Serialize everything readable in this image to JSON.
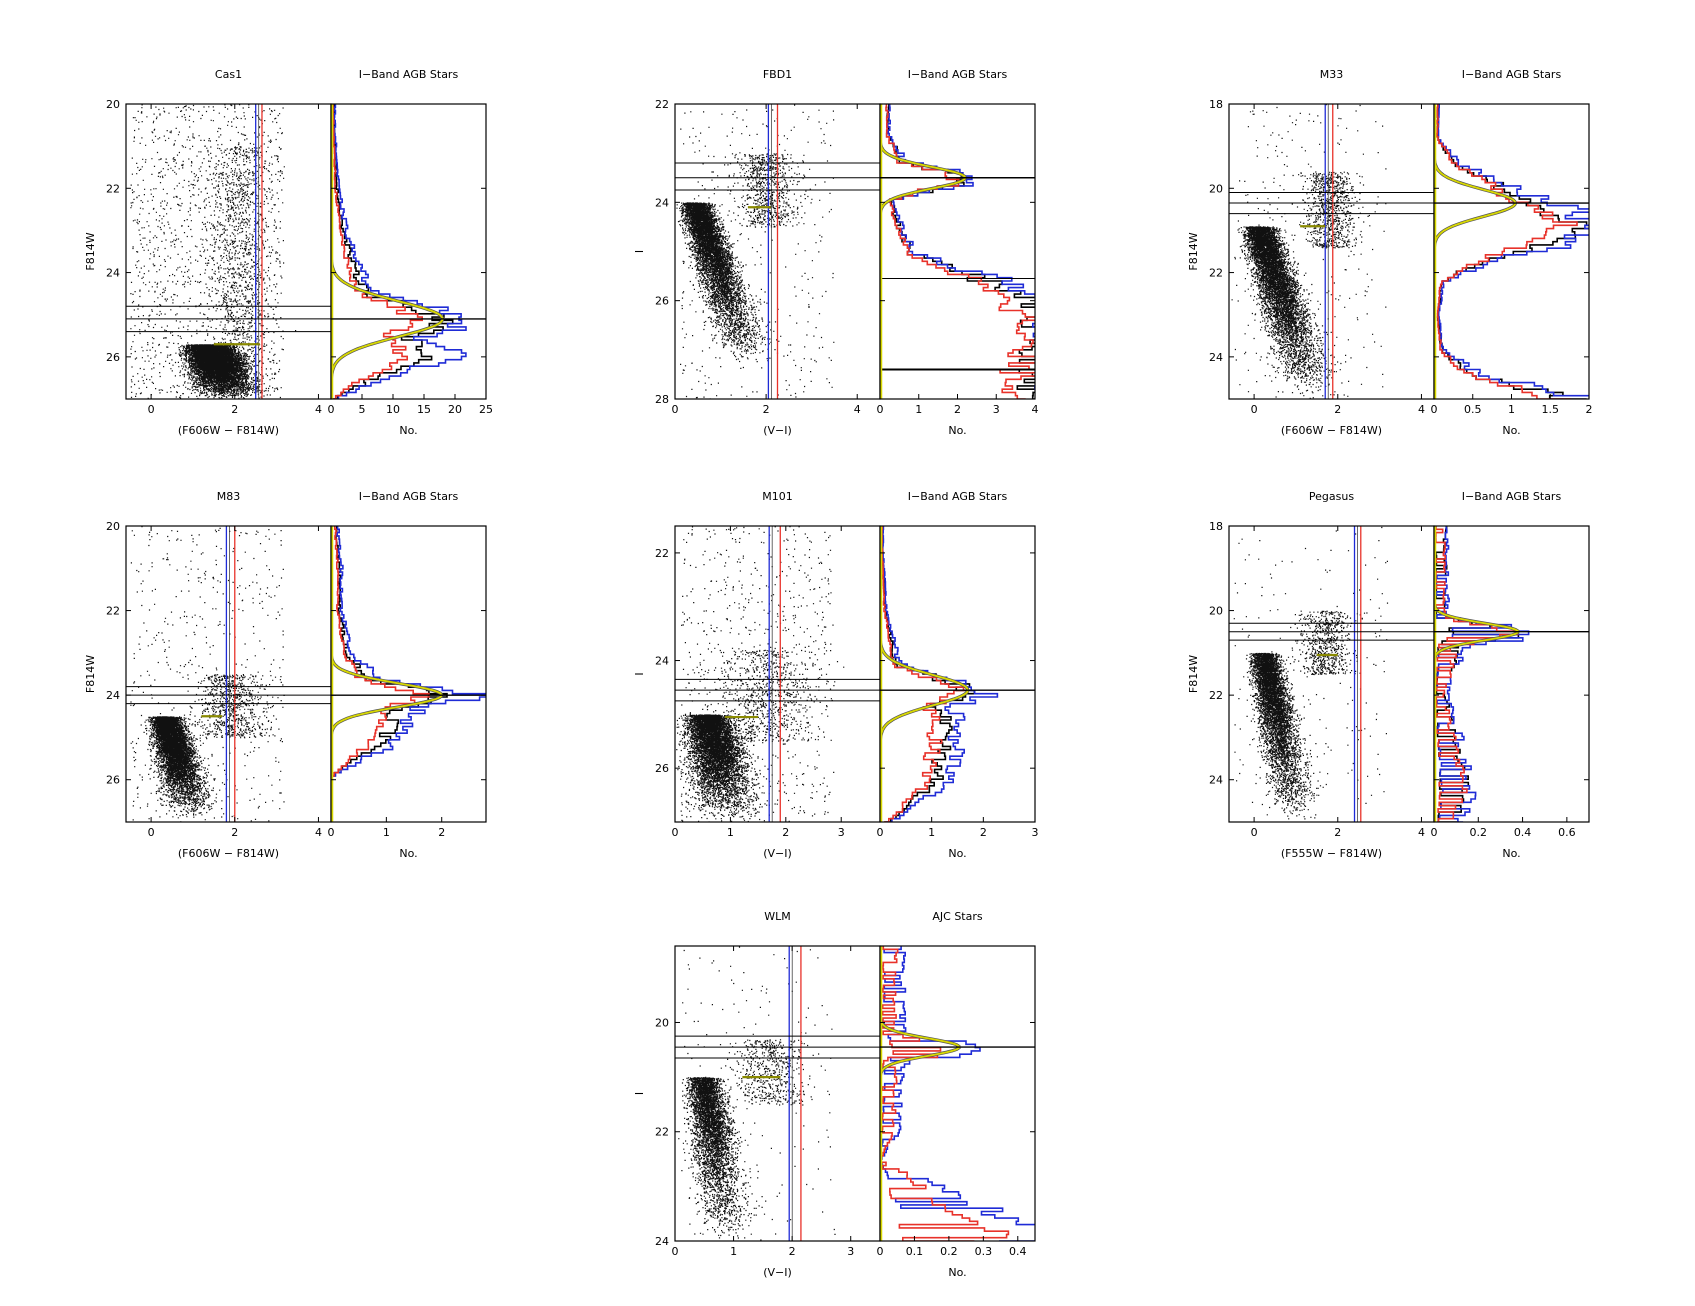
{
  "figure": {
    "colors": {
      "black": "#000000",
      "blue": "#1f2bd6",
      "red": "#e8322a",
      "yellow": "#d8d800",
      "yellow_dark": "#8a8a00",
      "points": "#111111"
    }
  },
  "chart_data": [
    {
      "type": "scatter",
      "title": "Cas1",
      "xlabel": "(F606W − F814W)",
      "ylabel": "F814W",
      "xlim": [
        -0.6,
        4.3
      ],
      "ylim": [
        27.0,
        20.0
      ],
      "xticks": [
        0,
        2,
        4
      ],
      "yticks": [
        20,
        22,
        24,
        26
      ],
      "cmd": {
        "rgb_x": 1.9,
        "rgb_top": 25.7,
        "rgb_bottom": 27.0,
        "rgb_slope": 1.2,
        "rgb_width": 0.45,
        "agb_x": 2.1,
        "agb_top": 21.0,
        "agb_width": 0.35,
        "density": 9000,
        "field": 1400
      },
      "blue_line": 2.5,
      "red_line": 2.65,
      "yellow_x": [
        1.5,
        2.6
      ],
      "yellow_y": 25.7,
      "hlines": [
        24.8,
        25.1,
        25.4
      ],
      "hist_line": 25.1,
      "hist": {
        "title": "I−Band AGB Stars",
        "xlabel": "No.",
        "xlim": [
          0,
          25
        ],
        "xticks": [
          0,
          5,
          10,
          15,
          20,
          25
        ],
        "peak": 25.1,
        "sigma": 0.42,
        "amp": 18,
        "tail": [
          [
            20.6,
            0.5
          ],
          [
            22,
            1
          ],
          [
            23,
            2
          ],
          [
            24,
            4
          ],
          [
            25.5,
            12
          ],
          [
            26,
            16
          ],
          [
            26.6,
            5
          ],
          [
            27,
            0
          ]
        ],
        "series": [
          {
            "name": "black",
            "scale": 1.0
          },
          {
            "name": "blue",
            "scale": 1.25
          },
          {
            "name": "red",
            "scale": 0.75
          }
        ]
      }
    },
    {
      "type": "scatter",
      "title": "FBD1",
      "xlabel": "(V−I)",
      "ylabel": "I",
      "xlim": [
        0,
        4.5
      ],
      "ylim": [
        28.0,
        22.0
      ],
      "xticks": [
        0,
        2,
        4
      ],
      "yticks": [
        22,
        24,
        26,
        28
      ],
      "cmd": {
        "rgb_x": 1.6,
        "rgb_top": 24.0,
        "rgb_bottom": 27.3,
        "rgb_slope": 1.0,
        "rgb_width": 0.3,
        "agb_x": 2.0,
        "agb_top": 23.0,
        "agb_width": 0.3,
        "density": 6500,
        "field": 350
      },
      "blue_line": 2.05,
      "red_line": 2.25,
      "yellow_x": [
        1.6,
        2.1
      ],
      "yellow_y": 24.1,
      "hlines": [
        23.2,
        23.5,
        23.75
      ],
      "hist_line": 23.5,
      "hist": {
        "title": "I−Band AGB Stars",
        "xlabel": "No.",
        "xlim": [
          0,
          4
        ],
        "xticks": [
          0,
          1,
          2,
          3,
          4
        ],
        "peak": 23.5,
        "sigma": 0.22,
        "amp": 2.2,
        "tail": [
          [
            22.6,
            0.2
          ],
          [
            23.0,
            0.5
          ],
          [
            24.0,
            0.3
          ],
          [
            24.5,
            0.5
          ],
          [
            25.0,
            0.8
          ],
          [
            25.5,
            2.5
          ],
          [
            25.9,
            4.0
          ]
        ],
        "series": [
          {
            "name": "black",
            "scale": 1.0
          },
          {
            "name": "blue",
            "scale": 1.15
          },
          {
            "name": "red",
            "scale": 0.9
          }
        ],
        "extra_lines": [
          25.55
        ],
        "bottom_line": 27.4
      }
    },
    {
      "type": "scatter",
      "title": "M33",
      "xlabel": "(F606W − F814W)",
      "ylabel": "F814W",
      "xlim": [
        -0.6,
        4.3
      ],
      "ylim": [
        25.0,
        18.0
      ],
      "xticks": [
        0,
        2,
        4
      ],
      "yticks": [
        18,
        20,
        22,
        24
      ],
      "cmd": {
        "rgb_x": 1.4,
        "rgb_top": 20.9,
        "rgb_bottom": 25.0,
        "rgb_slope": 0.9,
        "rgb_width": 0.35,
        "agb_x": 1.8,
        "agb_top": 19.6,
        "agb_width": 0.3,
        "density": 7000,
        "field": 250
      },
      "blue_line": 1.7,
      "red_line": 1.88,
      "yellow_x": [
        1.1,
        1.7
      ],
      "yellow_y": 20.9,
      "hlines": [
        20.1,
        20.35,
        20.6
      ],
      "hist_line": 20.35,
      "hist": {
        "title": "I−Band AGB Stars",
        "xlabel": "No.",
        "xlim": [
          0,
          2
        ],
        "xticks": [
          0,
          0.5,
          1,
          1.5,
          2
        ],
        "peak": 20.35,
        "sigma": 0.32,
        "amp": 1.05,
        "tail": [
          [
            18.8,
            0.05
          ],
          [
            19.4,
            0.3
          ],
          [
            20.9,
            1.9
          ],
          [
            21.3,
            1.4
          ],
          [
            21.7,
            0.6
          ],
          [
            22.2,
            0.1
          ],
          [
            23.0,
            0.05
          ],
          [
            23.8,
            0.1
          ],
          [
            24.4,
            0.5
          ],
          [
            25.0,
            1.8
          ]
        ],
        "series": [
          {
            "name": "black",
            "scale": 1.0
          },
          {
            "name": "blue",
            "scale": 1.2
          },
          {
            "name": "red",
            "scale": 0.9
          }
        ]
      }
    },
    {
      "type": "scatter",
      "title": "M83",
      "xlabel": "(F606W − F814W)",
      "ylabel": "F814W",
      "xlim": [
        -0.6,
        4.3
      ],
      "ylim": [
        27.0,
        20.0
      ],
      "xticks": [
        0,
        2,
        4
      ],
      "yticks": [
        20,
        22,
        24,
        26
      ],
      "cmd": {
        "rgb_x": 1.0,
        "rgb_top": 24.5,
        "rgb_bottom": 26.9,
        "rgb_slope": 0.8,
        "rgb_width": 0.32,
        "agb_x": 1.9,
        "agb_top": 23.5,
        "agb_width": 0.4,
        "density": 6500,
        "field": 500
      },
      "blue_line": 1.8,
      "red_line": 2.0,
      "yellow_x": [
        1.2,
        1.7
      ],
      "yellow_y": 24.5,
      "hlines": [
        23.8,
        24.0,
        24.2
      ],
      "hist_line": 24.0,
      "hist": {
        "title": "I−Band AGB Stars",
        "xlabel": "No.",
        "xlim": [
          0,
          2.8
        ],
        "xticks": [
          0,
          1,
          2
        ],
        "peak": 24.0,
        "sigma": 0.28,
        "amp": 2.0,
        "tail": [
          [
            20.2,
            0.1
          ],
          [
            21.0,
            0.15
          ],
          [
            22.0,
            0.15
          ],
          [
            23.0,
            0.3
          ],
          [
            24.4,
            1.2
          ],
          [
            25.0,
            1.0
          ],
          [
            25.5,
            0.4
          ],
          [
            25.9,
            0
          ]
        ],
        "series": [
          {
            "name": "black",
            "scale": 1.0
          },
          {
            "name": "blue",
            "scale": 1.3
          },
          {
            "name": "red",
            "scale": 0.8
          }
        ]
      }
    },
    {
      "type": "scatter",
      "title": "M101",
      "xlabel": "(V−I)",
      "ylabel": "I",
      "xlim": [
        0,
        3.7
      ],
      "ylim": [
        27.0,
        21.5
      ],
      "xticks": [
        0,
        1,
        2,
        3
      ],
      "yticks": [
        22,
        24,
        26
      ],
      "cmd": {
        "rgb_x": 1.0,
        "rgb_top": 25.0,
        "rgb_bottom": 27.0,
        "rgb_slope": 0.6,
        "rgb_width": 0.35,
        "agb_x": 1.6,
        "agb_top": 23.8,
        "agb_width": 0.4,
        "density": 6500,
        "field": 700
      },
      "blue_line": 1.7,
      "red_line": 1.9,
      "yellow_x": [
        0.9,
        1.5
      ],
      "yellow_y": 25.05,
      "hlines": [
        24.35,
        24.55,
        24.75
      ],
      "hist_line": 24.55,
      "hist": {
        "title": "I−Band AGB Stars",
        "xlabel": "No.",
        "xlim": [
          0,
          3
        ],
        "xticks": [
          0,
          1,
          2,
          3
        ],
        "peak": 24.55,
        "sigma": 0.28,
        "amp": 1.7,
        "tail": [
          [
            22.0,
            0.05
          ],
          [
            23.0,
            0.1
          ],
          [
            24.0,
            0.3
          ],
          [
            25.0,
            1.3
          ],
          [
            25.6,
            1.2
          ],
          [
            26.2,
            1.1
          ],
          [
            26.8,
            0.4
          ],
          [
            27.0,
            0.1
          ]
        ],
        "series": [
          {
            "name": "black",
            "scale": 1.0
          },
          {
            "name": "blue",
            "scale": 1.2
          },
          {
            "name": "red",
            "scale": 0.85
          }
        ]
      }
    },
    {
      "type": "scatter",
      "title": "Pegasus",
      "xlabel": "(F555W − F814W)",
      "ylabel": "F814W",
      "xlim": [
        -0.6,
        4.3
      ],
      "ylim": [
        25.0,
        18.0
      ],
      "xticks": [
        0,
        2,
        4
      ],
      "yticks": [
        18,
        20,
        22,
        24
      ],
      "cmd": {
        "rgb_x": 1.0,
        "rgb_top": 21.0,
        "rgb_bottom": 25.0,
        "rgb_slope": 0.55,
        "rgb_width": 0.3,
        "agb_x": 1.7,
        "agb_top": 20.0,
        "agb_width": 0.3,
        "density": 5500,
        "field": 200
      },
      "blue_line": 2.4,
      "red_line": 2.55,
      "yellow_x": [
        1.5,
        2.0
      ],
      "yellow_y": 21.05,
      "hlines": [
        20.3,
        20.5,
        20.7
      ],
      "hist_line": 20.5,
      "hist": {
        "title": "I−Band AGB Stars",
        "xlabel": "No.",
        "xlim": [
          0,
          0.7
        ],
        "xticks": [
          0,
          0.2,
          0.4,
          0.6
        ],
        "peak": 20.5,
        "sigma": 0.2,
        "amp": 0.38,
        "tail": [
          [
            19.0,
            0.05
          ],
          [
            20.0,
            0.05
          ],
          [
            21.0,
            0.1
          ],
          [
            22.0,
            0.05
          ],
          [
            23.0,
            0.1
          ],
          [
            24.2,
            0.15
          ],
          [
            25.0,
            0.1
          ]
        ],
        "series": [
          {
            "name": "black",
            "scale": 1.0
          },
          {
            "name": "blue",
            "scale": 1.2
          },
          {
            "name": "red",
            "scale": 0.9
          }
        ],
        "noisy": true
      }
    },
    {
      "type": "scatter",
      "title": "WLM",
      "xlabel": "(V−I)",
      "ylabel": "I",
      "xlim": [
        0,
        3.5
      ],
      "ylim": [
        24.0,
        18.6
      ],
      "xticks": [
        0,
        1,
        2,
        3
      ],
      "yticks": [
        20,
        22,
        24
      ],
      "cmd": {
        "rgb_x": 0.9,
        "rgb_top": 21.0,
        "rgb_bottom": 24.0,
        "rgb_slope": 0.4,
        "rgb_width": 0.25,
        "agb_x": 1.6,
        "agb_top": 20.3,
        "agb_width": 0.3,
        "density": 4500,
        "field": 180
      },
      "blue_line": 1.95,
      "red_line": 2.15,
      "yellow_x": [
        1.15,
        1.8
      ],
      "yellow_y": 21.0,
      "hlines": [
        20.25,
        20.45,
        20.65
      ],
      "hist_line": 20.45,
      "hist": {
        "title": "AJC Stars",
        "xlabel": "No.",
        "xlim": [
          0,
          0.45
        ],
        "xticks": [
          0,
          0.1,
          0.2,
          0.3,
          0.4
        ],
        "peak": 20.45,
        "sigma": 0.16,
        "amp": 0.23,
        "tail": [
          [
            19.6,
            0.05
          ],
          [
            20.0,
            0.05
          ],
          [
            21.0,
            0.05
          ],
          [
            22.0,
            0.04
          ],
          [
            22.5,
            0
          ],
          [
            22.8,
            0.1
          ],
          [
            23.3,
            0.2
          ],
          [
            23.8,
            0.4
          ],
          [
            24.0,
            0.3
          ]
        ],
        "series": [
          {
            "name": "blue",
            "scale": 1.3
          },
          {
            "name": "red",
            "scale": 0.9
          }
        ],
        "noisy": true
      }
    }
  ]
}
